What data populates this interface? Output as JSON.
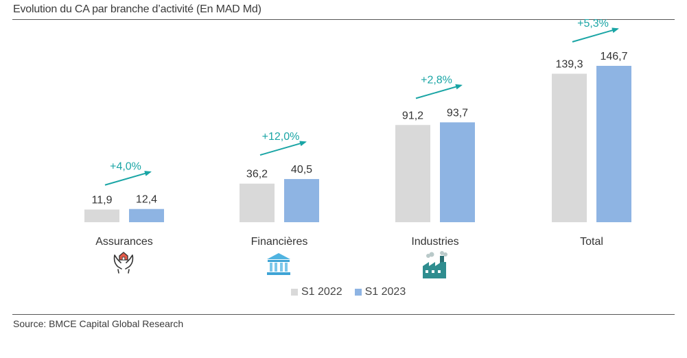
{
  "title": "Evolution du CA par branche d’activité (En MAD Md)",
  "source": "Source: BMCE Capital Global Research",
  "colors": {
    "s2022": "#d9d9d9",
    "s2023": "#8eb4e3",
    "growth": "#1aa5a5",
    "rule": "#555555"
  },
  "chart_data": {
    "type": "bar",
    "title": "Evolution du CA par branche d’activité (En MAD Md)",
    "categories": [
      "Assurances",
      "Financières",
      "Industries",
      "Total"
    ],
    "category_icons": [
      "hands-house-icon",
      "bank-building-icon",
      "factory-icon",
      ""
    ],
    "series": [
      {
        "name": "S1 2022",
        "values": [
          11.9,
          36.2,
          91.2,
          139.3
        ],
        "labels": [
          "11,9",
          "36,2",
          "91,2",
          "139,3"
        ]
      },
      {
        "name": "S1 2023",
        "values": [
          12.4,
          40.5,
          93.7,
          146.7
        ],
        "labels": [
          "12,4",
          "40,5",
          "93,7",
          "146,7"
        ]
      }
    ],
    "growth_labels": [
      "+4,0%",
      "+12,0%",
      "+2,8%",
      "+5,3%"
    ],
    "ylim": [
      0,
      146.7
    ],
    "xlabel": "",
    "ylabel": "",
    "grid": false,
    "legend_position": "bottom-center"
  }
}
